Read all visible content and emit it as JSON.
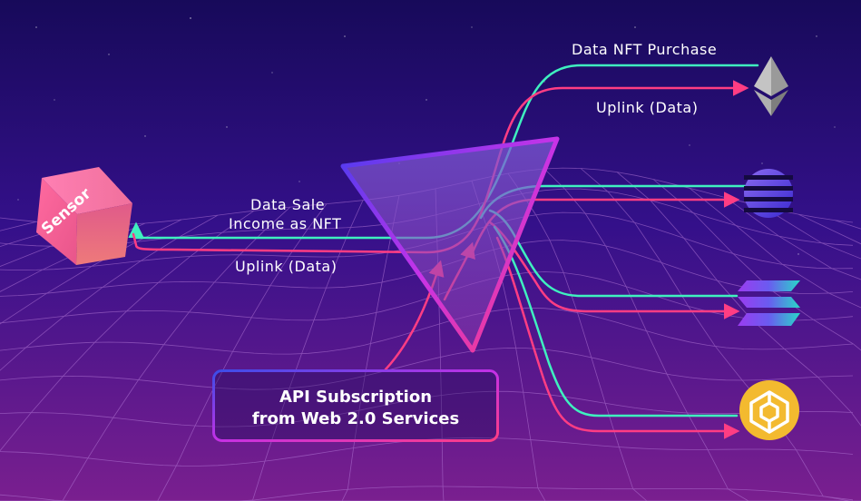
{
  "colors": {
    "bg_top": "#190b5e",
    "bg_mid": "#3a0f8a",
    "bg_bottom": "#6c1f8e",
    "grid": "#b57ad8",
    "teal": "#3ff0bf",
    "pink": "#ff3d83",
    "magenta": "#c430e6",
    "blue": "#3b4de8"
  },
  "sensor": {
    "label": "Sensor"
  },
  "labels": {
    "data_sale_line1": "Data Sale",
    "data_sale_line2": "Income as NFT",
    "uplink_left": "Uplink (Data)",
    "data_nft_purchase": "Data NFT Purchase",
    "uplink_right": "Uplink (Data)"
  },
  "api_box": {
    "line1": "API Subscription",
    "line2": "from Web 2.0 Services"
  },
  "chains": [
    {
      "icon": "ethereum-icon"
    },
    {
      "icon": "polkadot-icon"
    },
    {
      "icon": "solana-icon"
    },
    {
      "icon": "bnb-icon"
    }
  ]
}
